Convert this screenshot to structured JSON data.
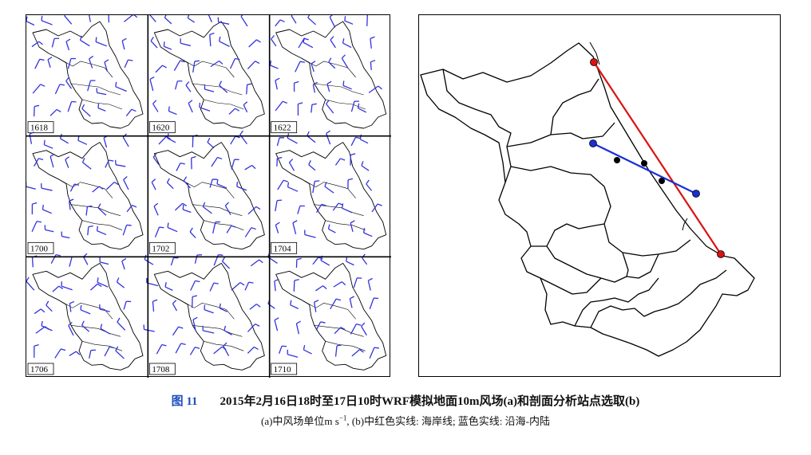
{
  "panel_a": {
    "time_labels": [
      "1618",
      "1620",
      "1622",
      "1700",
      "1702",
      "1704",
      "1706",
      "1708",
      "1710"
    ],
    "barb_color": "#3333dd"
  },
  "panel_b": {
    "coast_line_color": "#dd1111",
    "inland_line_color": "#1a2fd6"
  },
  "caption": {
    "figure_label": "图 11",
    "title": "2015年2月16日18时至17日10时WRF模拟地面10m风场(a)和剖面分析站点选取(b)",
    "note_prefix": "(a)中风场单位m s",
    "note_superscript": "−1",
    "note_suffix": ", (b)中红色实线: 海岸线; 蓝色实线: 沿海-内陆"
  }
}
